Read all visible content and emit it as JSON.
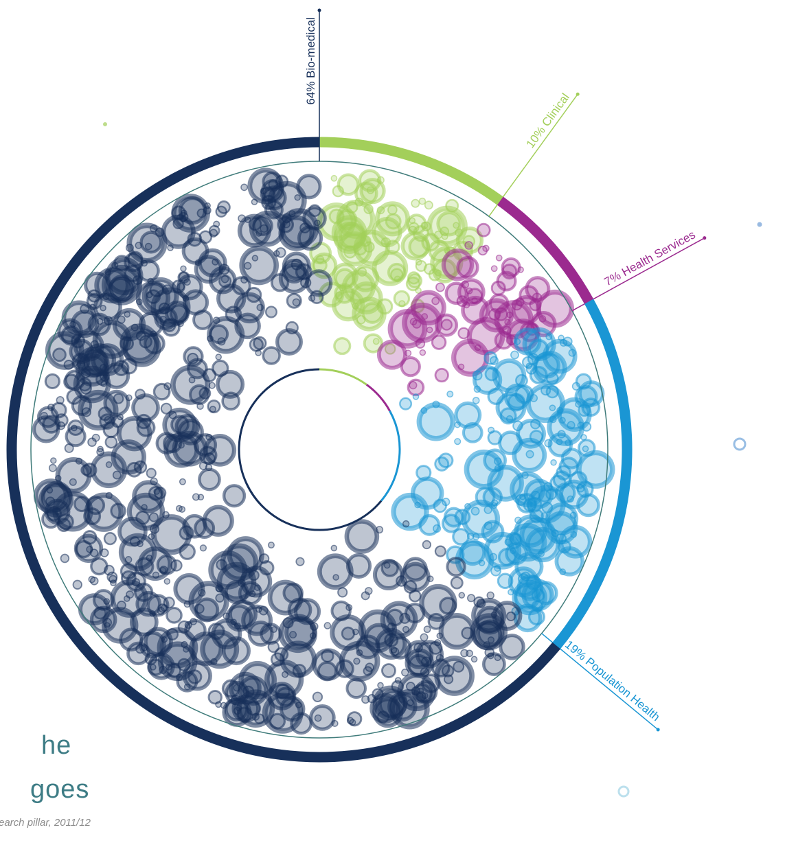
{
  "chart_data": {
    "type": "donut",
    "title_lines": [
      "he",
      "goes"
    ],
    "subtitle": "earch pillar, 2011/12",
    "values": [
      10,
      7,
      19,
      64
    ],
    "value_labels": [
      "10% Clinical",
      "7% Health Services",
      "19% Population Health",
      "64% Bio-medical"
    ],
    "colors": [
      "#a3cf5a",
      "#9b2a8f",
      "#1a96d4",
      "#17305a"
    ]
  }
}
